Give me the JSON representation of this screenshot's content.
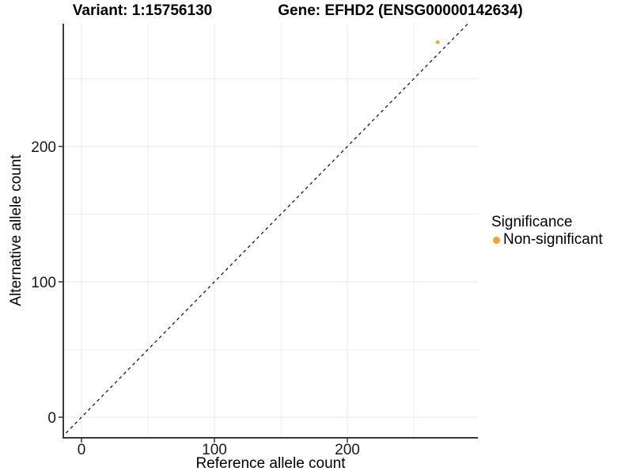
{
  "header": {
    "variant_title": "Variant: 1:15756130",
    "gene_title": "Gene: EFHD2 (ENSG00000142634)"
  },
  "chart_data": {
    "type": "scatter",
    "xlabel": "Reference allele count",
    "ylabel": "Alternative allele count",
    "x_ticks": [
      0,
      100,
      200
    ],
    "y_ticks": [
      0,
      100,
      200
    ],
    "x_minor_ticks": [
      50,
      150,
      250
    ],
    "y_minor_ticks": [
      50,
      150,
      250
    ],
    "xlim": [
      -14,
      298
    ],
    "ylim": [
      -15,
      291
    ],
    "grid": "major and minor, light gray on white",
    "series": [
      {
        "name": "Non-significant",
        "color": "#FAA032",
        "points": [
          {
            "x": 268,
            "y": 277
          }
        ]
      }
    ],
    "reference_line": {
      "equation": "y = x",
      "style": "dashed",
      "color": "#1a1a1a"
    },
    "legend": {
      "title": "Significance",
      "position": "right",
      "items": [
        {
          "label": "Non-significant",
          "color": "#FAA032"
        }
      ]
    }
  },
  "colors": {
    "grid_major": "#e7e7e7",
    "grid_minor": "#f1f1f1",
    "axis_line": "#383838",
    "tick_mark": "#333333",
    "tick_text": "#1a1a1a"
  }
}
